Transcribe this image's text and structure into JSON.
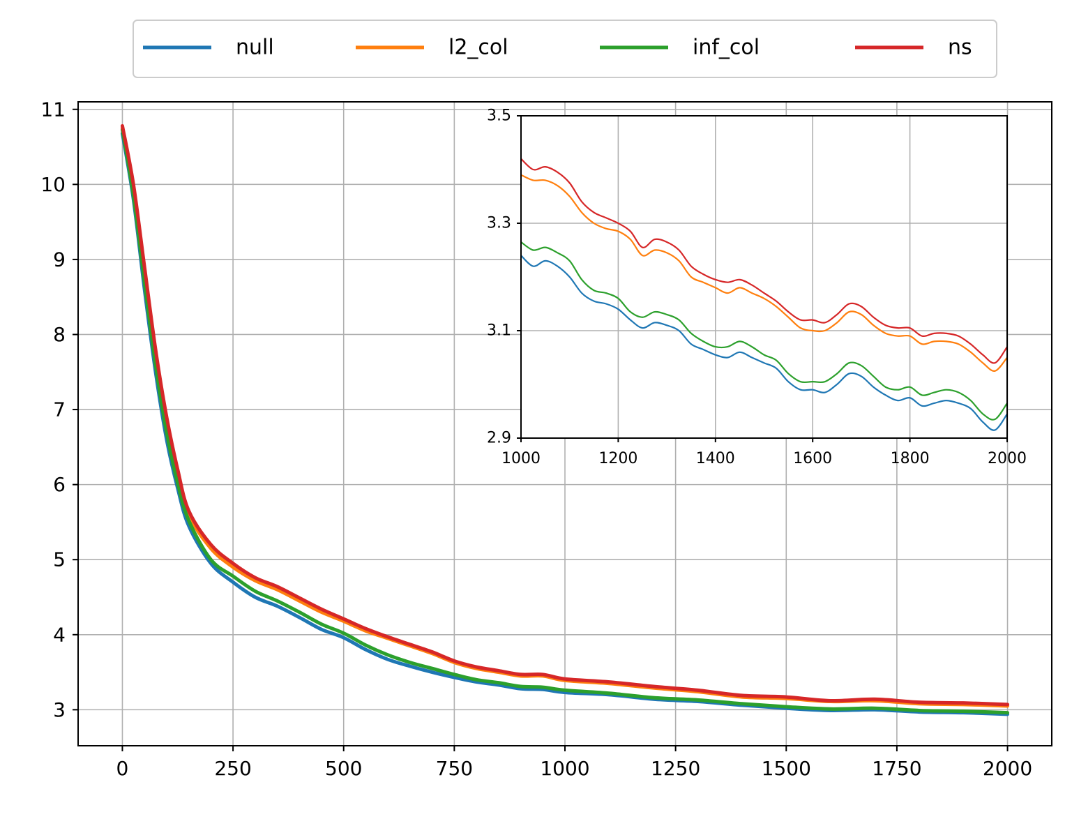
{
  "chart_data": [
    {
      "type": "line",
      "title": "",
      "xlabel": "",
      "ylabel": "",
      "xlim": [
        -100,
        2100
      ],
      "ylim": [
        2.52,
        11.1
      ],
      "xticks": [
        0,
        250,
        500,
        750,
        1000,
        1250,
        1500,
        1750,
        2000
      ],
      "xtick_labels": [
        "0",
        "250",
        "500",
        "750",
        "1000",
        "1250",
        "1500",
        "1750",
        "2000"
      ],
      "yticks": [
        3,
        4,
        5,
        6,
        7,
        8,
        9,
        10,
        11
      ],
      "ytick_labels": [
        "3",
        "4",
        "5",
        "6",
        "7",
        "8",
        "9",
        "10",
        "11"
      ],
      "grid": true,
      "legend": {
        "placement": "top-center-outside",
        "entries": [
          "null",
          "l2_col",
          "inf_col",
          "ns"
        ]
      },
      "x": [
        0,
        25,
        50,
        75,
        100,
        125,
        150,
        200,
        250,
        300,
        350,
        400,
        450,
        500,
        550,
        600,
        650,
        700,
        750,
        800,
        850,
        900,
        950,
        1000,
        1100,
        1200,
        1300,
        1400,
        1500,
        1600,
        1700,
        1800,
        1900,
        2000
      ],
      "series": [
        {
          "name": "null",
          "color": "#1f77b4",
          "values": [
            10.68,
            9.8,
            8.6,
            7.5,
            6.6,
            5.95,
            5.45,
            4.95,
            4.7,
            4.5,
            4.38,
            4.23,
            4.07,
            3.96,
            3.8,
            3.67,
            3.58,
            3.5,
            3.43,
            3.37,
            3.33,
            3.28,
            3.27,
            3.23,
            3.2,
            3.14,
            3.11,
            3.06,
            3.02,
            2.99,
            3.0,
            2.97,
            2.96,
            2.94
          ]
        },
        {
          "name": "l2_col",
          "color": "#ff7f0e",
          "values": [
            10.75,
            9.95,
            8.85,
            7.75,
            6.85,
            6.15,
            5.6,
            5.15,
            4.9,
            4.72,
            4.6,
            4.45,
            4.3,
            4.18,
            4.05,
            3.95,
            3.85,
            3.75,
            3.63,
            3.55,
            3.5,
            3.45,
            3.45,
            3.39,
            3.35,
            3.29,
            3.24,
            3.17,
            3.15,
            3.11,
            3.12,
            3.08,
            3.07,
            3.05
          ]
        },
        {
          "name": "inf_col",
          "color": "#2ca02c",
          "values": [
            10.73,
            9.85,
            8.7,
            7.6,
            6.7,
            6.02,
            5.52,
            5.0,
            4.78,
            4.58,
            4.45,
            4.3,
            4.14,
            4.02,
            3.86,
            3.73,
            3.63,
            3.55,
            3.47,
            3.4,
            3.36,
            3.31,
            3.3,
            3.26,
            3.22,
            3.16,
            3.13,
            3.08,
            3.04,
            3.01,
            3.02,
            2.99,
            2.98,
            2.96
          ]
        },
        {
          "name": "ns",
          "color": "#d62728",
          "values": [
            10.78,
            10.0,
            8.9,
            7.8,
            6.9,
            6.2,
            5.65,
            5.2,
            4.95,
            4.76,
            4.64,
            4.49,
            4.34,
            4.21,
            4.08,
            3.97,
            3.87,
            3.77,
            3.65,
            3.57,
            3.52,
            3.47,
            3.47,
            3.41,
            3.37,
            3.31,
            3.26,
            3.19,
            3.17,
            3.12,
            3.14,
            3.1,
            3.09,
            3.07
          ]
        }
      ]
    },
    {
      "type": "line",
      "title": "",
      "xlabel": "",
      "ylabel": "",
      "xlim": [
        1000,
        2000
      ],
      "ylim": [
        2.9,
        3.5
      ],
      "xticks": [
        1000,
        1200,
        1400,
        1600,
        1800,
        2000
      ],
      "xtick_labels": [
        "1000",
        "1200",
        "1400",
        "1600",
        "1800",
        "2000"
      ],
      "yticks": [
        2.9,
        3.1,
        3.3,
        3.5
      ],
      "ytick_labels": [
        "2.9",
        "3.1",
        "3.3",
        "3.5"
      ],
      "grid": true,
      "x": [
        1000,
        1025,
        1050,
        1075,
        1100,
        1125,
        1150,
        1175,
        1200,
        1225,
        1250,
        1275,
        1300,
        1325,
        1350,
        1375,
        1400,
        1425,
        1450,
        1475,
        1500,
        1525,
        1550,
        1575,
        1600,
        1625,
        1650,
        1675,
        1700,
        1725,
        1750,
        1775,
        1800,
        1825,
        1850,
        1875,
        1900,
        1925,
        1950,
        1975,
        2000
      ],
      "series": [
        {
          "name": "null",
          "color": "#1f77b4",
          "values": [
            3.24,
            3.22,
            3.23,
            3.22,
            3.2,
            3.17,
            3.155,
            3.15,
            3.14,
            3.12,
            3.105,
            3.115,
            3.11,
            3.1,
            3.075,
            3.065,
            3.055,
            3.05,
            3.06,
            3.05,
            3.04,
            3.03,
            3.005,
            2.99,
            2.99,
            2.985,
            3.0,
            3.02,
            3.015,
            2.995,
            2.98,
            2.97,
            2.975,
            2.96,
            2.965,
            2.97,
            2.965,
            2.955,
            2.93,
            2.915,
            2.945
          ]
        },
        {
          "name": "l2_col",
          "color": "#ff7f0e",
          "values": [
            3.39,
            3.38,
            3.38,
            3.37,
            3.35,
            3.32,
            3.3,
            3.29,
            3.285,
            3.27,
            3.24,
            3.25,
            3.245,
            3.23,
            3.2,
            3.19,
            3.18,
            3.17,
            3.18,
            3.17,
            3.16,
            3.145,
            3.125,
            3.105,
            3.1,
            3.1,
            3.115,
            3.135,
            3.13,
            3.11,
            3.095,
            3.09,
            3.09,
            3.075,
            3.08,
            3.08,
            3.075,
            3.06,
            3.04,
            3.025,
            3.05
          ]
        },
        {
          "name": "inf_col",
          "color": "#2ca02c",
          "values": [
            3.265,
            3.25,
            3.255,
            3.245,
            3.23,
            3.195,
            3.175,
            3.17,
            3.16,
            3.135,
            3.125,
            3.135,
            3.13,
            3.12,
            3.095,
            3.08,
            3.07,
            3.07,
            3.08,
            3.07,
            3.055,
            3.045,
            3.02,
            3.005,
            3.005,
            3.005,
            3.02,
            3.04,
            3.035,
            3.015,
            2.995,
            2.99,
            2.995,
            2.98,
            2.985,
            2.99,
            2.985,
            2.97,
            2.945,
            2.935,
            2.965
          ]
        },
        {
          "name": "ns",
          "color": "#d62728",
          "values": [
            3.42,
            3.4,
            3.405,
            3.395,
            3.375,
            3.34,
            3.32,
            3.31,
            3.3,
            3.285,
            3.255,
            3.27,
            3.265,
            3.25,
            3.22,
            3.205,
            3.195,
            3.19,
            3.195,
            3.185,
            3.17,
            3.155,
            3.135,
            3.12,
            3.12,
            3.115,
            3.13,
            3.15,
            3.145,
            3.125,
            3.11,
            3.105,
            3.105,
            3.09,
            3.095,
            3.095,
            3.09,
            3.075,
            3.055,
            3.04,
            3.07
          ]
        }
      ]
    }
  ]
}
